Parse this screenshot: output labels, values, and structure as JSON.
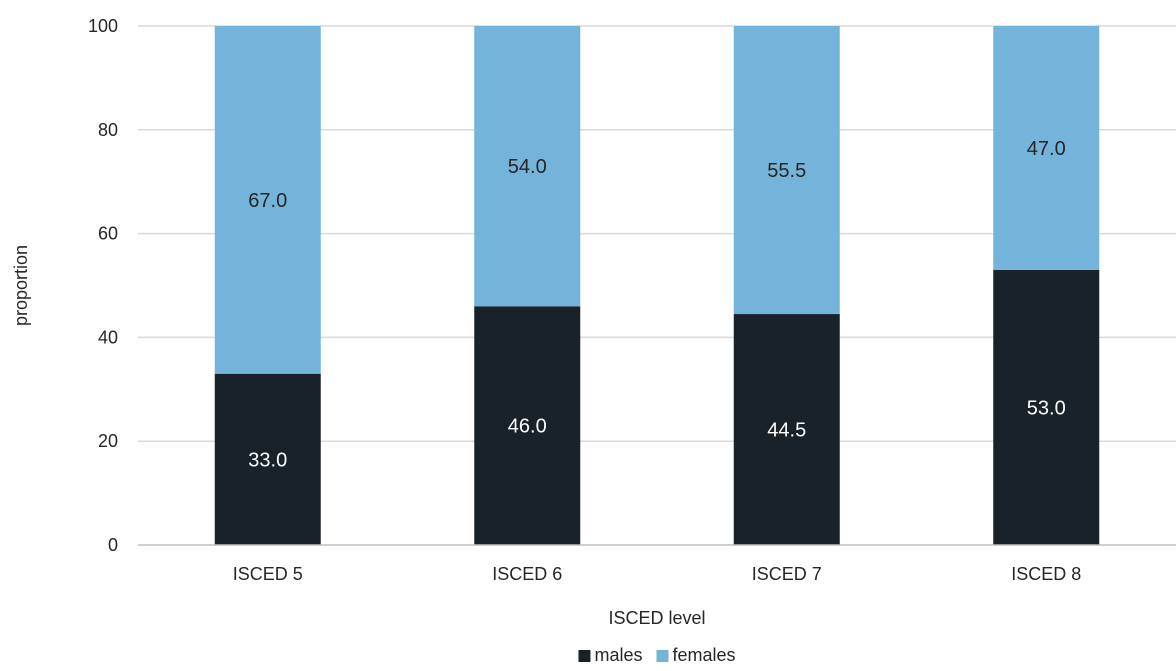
{
  "chart_data": {
    "type": "bar",
    "stacked": true,
    "categories": [
      "ISCED 5",
      "ISCED 6",
      "ISCED 7",
      "ISCED 8"
    ],
    "series": [
      {
        "name": "males",
        "values": [
          33.0,
          46.0,
          44.5,
          53.0
        ],
        "labels": [
          "33.0",
          "46.0",
          "44.5",
          "53.0"
        ],
        "color": "#1a2229",
        "label_color": "#ffffff"
      },
      {
        "name": "females",
        "values": [
          67.0,
          54.0,
          55.5,
          47.0
        ],
        "labels": [
          "67.0",
          "54.0",
          "55.5",
          "47.0"
        ],
        "color": "#74b4da",
        "label_color": "#262626"
      }
    ],
    "xlabel": "ISCED level",
    "ylabel": "proportion",
    "ylim": [
      0,
      100
    ],
    "yticks": [
      0,
      20,
      40,
      60,
      80,
      100
    ],
    "grid": true,
    "legend": "bottom"
  }
}
